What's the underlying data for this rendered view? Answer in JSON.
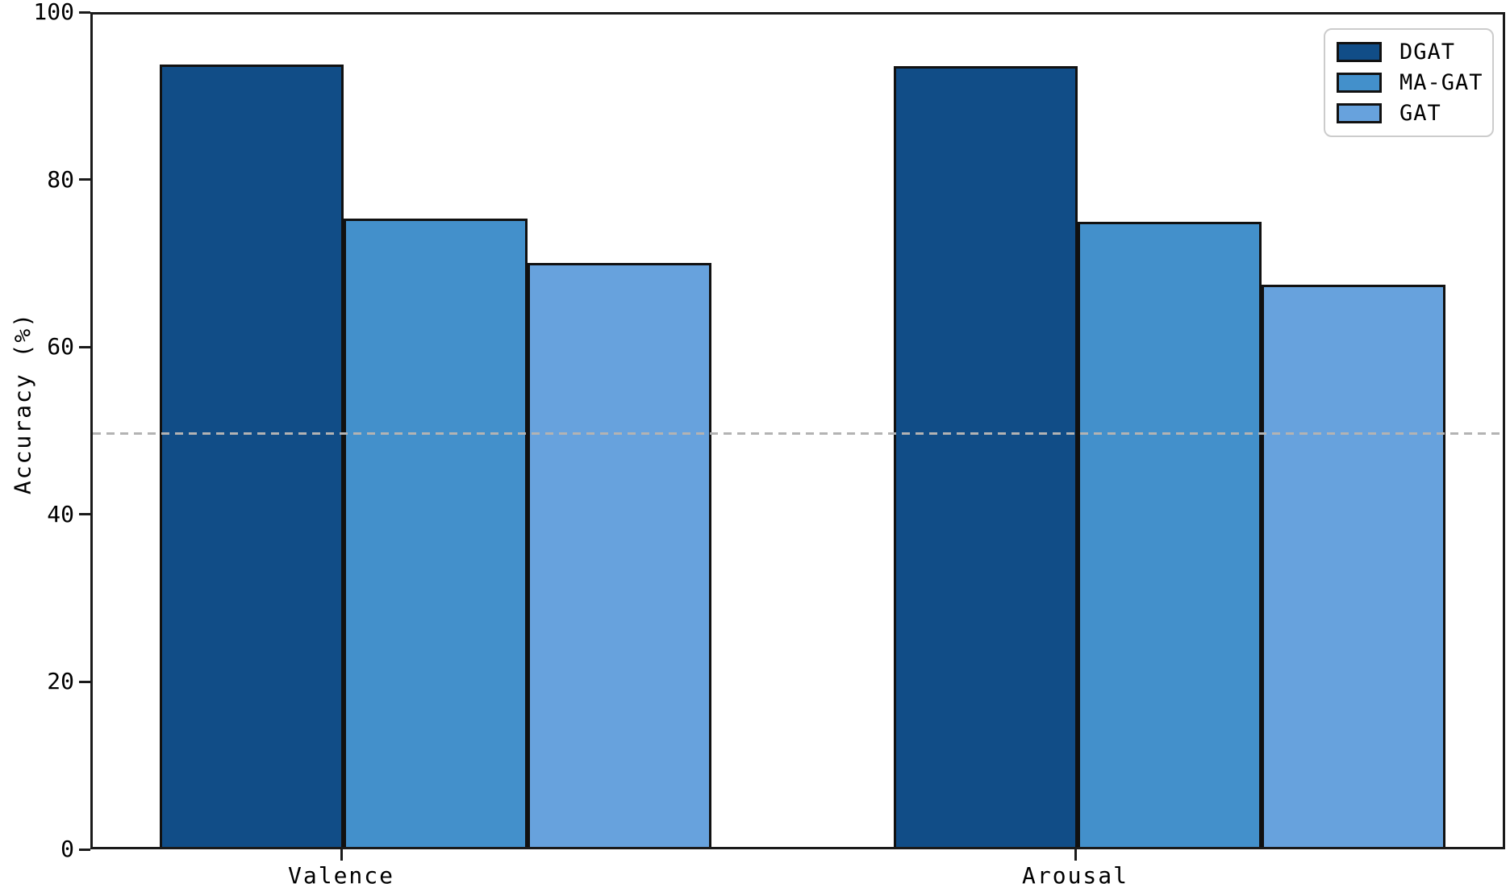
{
  "figure": {
    "background": "#ffffff"
  },
  "chart_data": {
    "type": "bar",
    "title": "",
    "categories": [
      "Valence",
      "Arousal"
    ],
    "series": [
      {
        "name": "DGAT",
        "color": "#114d87",
        "values": [
          93.5,
          93.3
        ]
      },
      {
        "name": "MA-GAT",
        "color": "#4390cb",
        "values": [
          75.1,
          74.7
        ]
      },
      {
        "name": "GAT",
        "color": "#67a2dd",
        "values": [
          69.8,
          67.2
        ]
      }
    ],
    "xlabel": "",
    "ylabel": "Accuracy (%)",
    "ylim": [
      0,
      100
    ],
    "yticks": [
      0,
      20,
      40,
      60,
      80,
      100
    ],
    "reference_line": {
      "y": 50,
      "style": "dashed",
      "color": "#b3b3b3"
    },
    "legend": {
      "position": "top-right",
      "entries": [
        "DGAT",
        "MA-GAT",
        "GAT"
      ]
    },
    "grid": false,
    "bar_edge_color": "#111111",
    "spine_color": "#1a1a1a"
  }
}
